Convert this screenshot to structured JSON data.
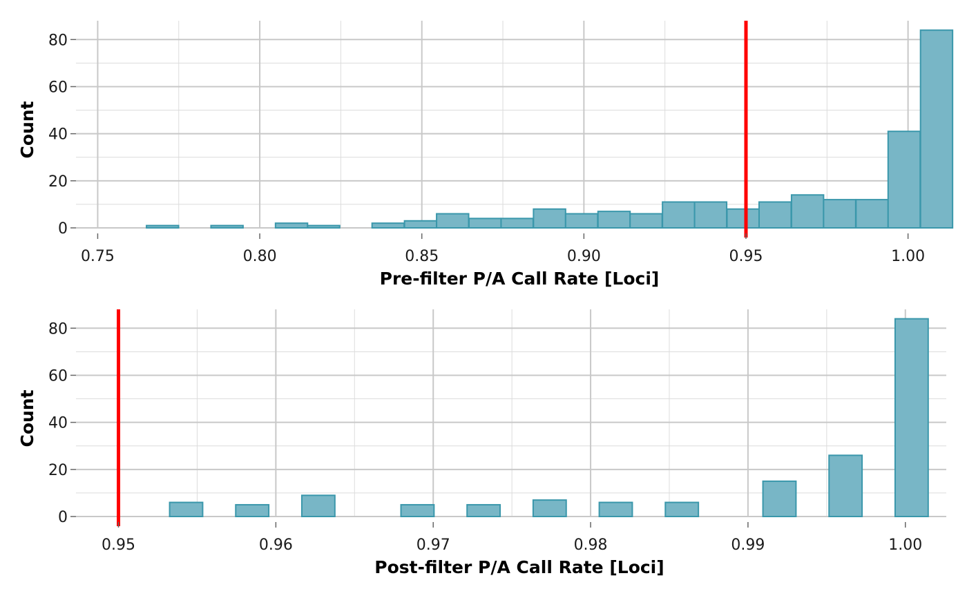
{
  "colors": {
    "bar_fill": "#78b6c6",
    "bar_stroke": "#3a97ab",
    "threshold": "#ff0000"
  },
  "chart_data": [
    {
      "type": "bar",
      "xlabel": "Pre-filter P/A Call Rate [Loci]",
      "ylabel": "Count",
      "xlim": [
        0.7433,
        1.0118
      ],
      "ylim": [
        0,
        88
      ],
      "xticks": [
        0.75,
        0.8,
        0.85,
        0.9,
        0.95,
        1.0
      ],
      "xtick_labels": [
        "0.75",
        "0.80",
        "0.85",
        "0.90",
        "0.95",
        "1.00"
      ],
      "yticks": [
        0,
        20,
        40,
        60,
        80
      ],
      "ytick_labels": [
        "0",
        "20",
        "40",
        "60",
        "80"
      ],
      "grid": true,
      "threshold": 0.95,
      "bin_width": 0.0099,
      "bins": [
        {
          "center": 0.77,
          "count": 1
        },
        {
          "center": 0.7799,
          "count": 0
        },
        {
          "center": 0.7899,
          "count": 1
        },
        {
          "center": 0.7998,
          "count": 0
        },
        {
          "center": 0.8098,
          "count": 2
        },
        {
          "center": 0.8197,
          "count": 1
        },
        {
          "center": 0.8297,
          "count": 0
        },
        {
          "center": 0.8396,
          "count": 2
        },
        {
          "center": 0.8496,
          "count": 3
        },
        {
          "center": 0.8595,
          "count": 6
        },
        {
          "center": 0.8695,
          "count": 4
        },
        {
          "center": 0.8794,
          "count": 4
        },
        {
          "center": 0.8894,
          "count": 8
        },
        {
          "center": 0.8993,
          "count": 6
        },
        {
          "center": 0.9093,
          "count": 7
        },
        {
          "center": 0.9192,
          "count": 6
        },
        {
          "center": 0.9292,
          "count": 11
        },
        {
          "center": 0.9391,
          "count": 11
        },
        {
          "center": 0.9491,
          "count": 8
        },
        {
          "center": 0.959,
          "count": 11
        },
        {
          "center": 0.969,
          "count": 14
        },
        {
          "center": 0.9789,
          "count": 12
        },
        {
          "center": 0.9889,
          "count": 12
        },
        {
          "center": 0.9988,
          "count": 41
        },
        {
          "center": 1.0088,
          "count": 84
        }
      ]
    },
    {
      "type": "bar",
      "xlabel": "Post-filter P/A Call Rate [Loci]",
      "ylabel": "Count",
      "xlim": [
        0.9473,
        1.0026
      ],
      "ylim": [
        0,
        88
      ],
      "xticks": [
        0.95,
        0.96,
        0.97,
        0.98,
        0.99,
        1.0
      ],
      "xtick_labels": [
        "0.95",
        "0.96",
        "0.97",
        "0.98",
        "0.99",
        "1.00"
      ],
      "yticks": [
        0,
        20,
        40,
        60,
        80
      ],
      "ytick_labels": [
        "0",
        "20",
        "40",
        "60",
        "80"
      ],
      "grid": true,
      "threshold": 0.95,
      "bin_width": 0.0021,
      "bins": [
        {
          "center": 0.9502,
          "count": 0
        },
        {
          "center": 0.9543,
          "count": 6
        },
        {
          "center": 0.9585,
          "count": 5
        },
        {
          "center": 0.9627,
          "count": 9
        },
        {
          "center": 0.969,
          "count": 5
        },
        {
          "center": 0.9732,
          "count": 5
        },
        {
          "center": 0.9774,
          "count": 7
        },
        {
          "center": 0.9816,
          "count": 6
        },
        {
          "center": 0.9858,
          "count": 6
        },
        {
          "center": 0.992,
          "count": 15
        },
        {
          "center": 0.9962,
          "count": 26
        },
        {
          "center": 1.0004,
          "count": 84
        }
      ]
    }
  ]
}
